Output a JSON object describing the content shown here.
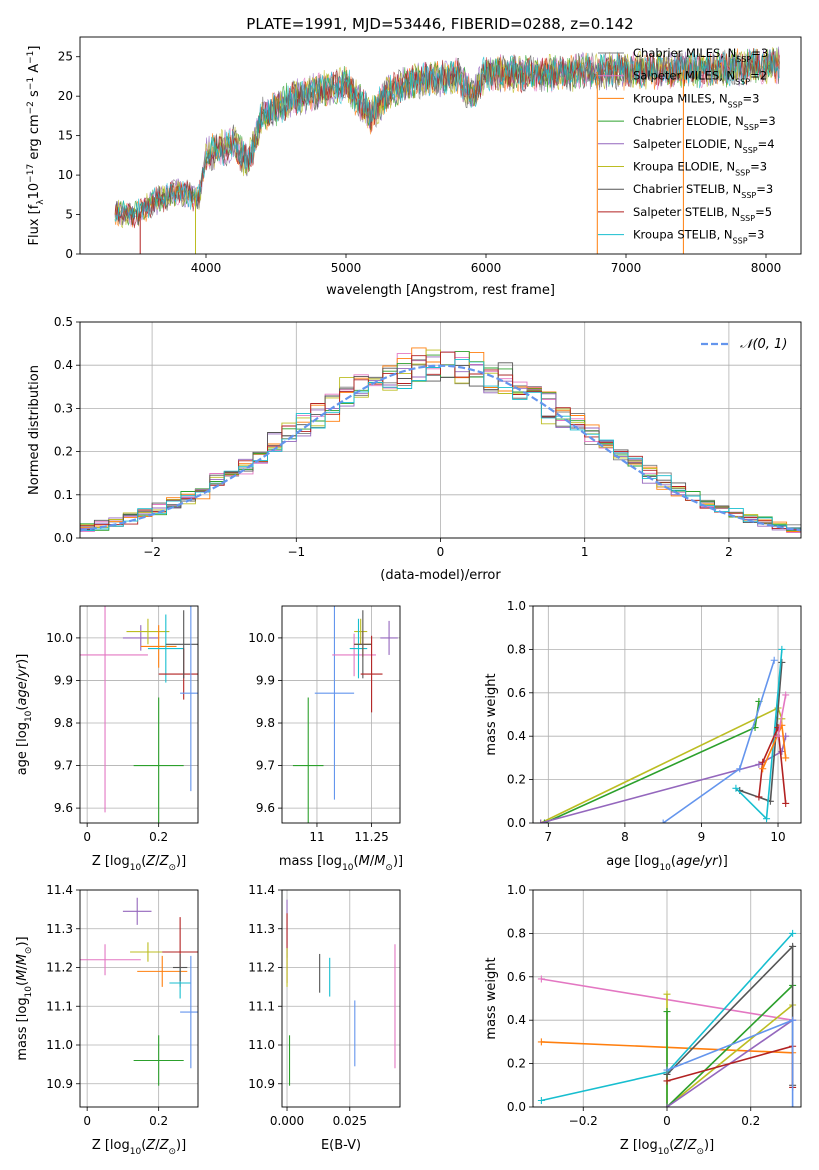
{
  "figure_title": "PLATE=1991, MJD=53446, FIBERID=0288, z=0.142",
  "colors": {
    "chabrier_miles": "#7f7f7f",
    "salpeter_miles": "#e377c2",
    "kroupa_miles": "#ff7f0e",
    "chabrier_elodie": "#2ca02c",
    "salpeter_elodie": "#9467bd",
    "kroupa_elodie": "#bcbd22",
    "chabrier_stelib": "#555555",
    "salpeter_stelib": "#b22222",
    "kroupa_stelib": "#17becf",
    "normal_curve": "#6495ed",
    "grid": "#b0b0b0"
  },
  "chart_data": [
    {
      "id": "spectrum",
      "type": "line",
      "xlabel": "wavelength [Angstrom, rest frame]",
      "ylabel": "Flux [f_λ10^-17 erg cm^-2 s^-1 A^-1]",
      "xlim": [
        3100,
        8250
      ],
      "ylim": [
        0,
        27.5
      ],
      "xticks": [
        4000,
        5000,
        6000,
        7000,
        8000
      ],
      "yticks": [
        0,
        5,
        10,
        15,
        20,
        25
      ],
      "grid": false,
      "legend_position": "top-right",
      "spectrum_anchor_points": [
        [
          3350,
          5.2
        ],
        [
          3500,
          5.0
        ],
        [
          3600,
          6.3
        ],
        [
          3800,
          8.0
        ],
        [
          3950,
          7.0
        ],
        [
          4000,
          12.5
        ],
        [
          4200,
          14.0
        ],
        [
          4300,
          11.5
        ],
        [
          4400,
          17.5
        ],
        [
          4600,
          19.5
        ],
        [
          4850,
          21.0
        ],
        [
          5000,
          21.5
        ],
        [
          5175,
          17.5
        ],
        [
          5300,
          20.5
        ],
        [
          5500,
          22.0
        ],
        [
          5800,
          22.5
        ],
        [
          5900,
          20.0
        ],
        [
          6000,
          23.0
        ],
        [
          6300,
          22.8
        ],
        [
          6600,
          23.0
        ],
        [
          7000,
          23.2
        ],
        [
          7400,
          23.3
        ],
        [
          7700,
          23.5
        ],
        [
          8000,
          24.0
        ]
      ],
      "series": [
        {
          "name": "Chabrier MILES, N_SSP=3",
          "label_main": "Chabrier MILES, N",
          "label_sub": "SSP",
          "label_end": "=3",
          "color_key": "chabrier_miles"
        },
        {
          "name": "Salpeter MILES, N_SSP=2",
          "label_main": "Salpeter MILES, N",
          "label_sub": "SSP",
          "label_end": "=2",
          "color_key": "salpeter_miles"
        },
        {
          "name": "Kroupa MILES, N_SSP=3",
          "label_main": "Kroupa MILES, N",
          "label_sub": "SSP",
          "label_end": "=3",
          "color_key": "kroupa_miles"
        },
        {
          "name": "Chabrier ELODIE, N_SSP=3",
          "label_main": "Chabrier ELODIE, N",
          "label_sub": "SSP",
          "label_end": "=3",
          "color_key": "chabrier_elodie"
        },
        {
          "name": "Salpeter ELODIE, N_SSP=4",
          "label_main": "Salpeter ELODIE, N",
          "label_sub": "SSP",
          "label_end": "=4",
          "color_key": "salpeter_elodie"
        },
        {
          "name": "Kroupa ELODIE, N_SSP=3",
          "label_main": "Kroupa ELODIE, N",
          "label_sub": "SSP",
          "label_end": "=3",
          "color_key": "kroupa_elodie"
        },
        {
          "name": "Chabrier STELIB, N_SSP=3",
          "label_main": "Chabrier STELIB, N",
          "label_sub": "SSP",
          "label_end": "=3",
          "color_key": "chabrier_stelib"
        },
        {
          "name": "Salpeter STELIB, N_SSP=5",
          "label_main": "Salpeter STELIB, N",
          "label_sub": "SSP",
          "label_end": "=5",
          "color_key": "salpeter_stelib"
        },
        {
          "name": "Kroupa STELIB, N_SSP=3",
          "label_main": "Kroupa STELIB, N",
          "label_sub": "SSP",
          "label_end": "=3",
          "color_key": "kroupa_stelib"
        }
      ],
      "dropouts": [
        {
          "x": 3530,
          "color_key": "salpeter_stelib"
        },
        {
          "x": 3925,
          "color_key": "kroupa_elodie"
        },
        {
          "x": 6795,
          "color_key": "kroupa_miles"
        },
        {
          "x": 7410,
          "color_key": "kroupa_miles"
        }
      ]
    },
    {
      "id": "residuals",
      "type": "step",
      "xlabel": "(data-model)/error",
      "ylabel": "Normed distribution",
      "xlim": [
        -2.5,
        2.5
      ],
      "ylim": [
        0,
        0.5
      ],
      "xticks": [
        -2,
        -1,
        0,
        1,
        2
      ],
      "yticks": [
        0.0,
        0.1,
        0.2,
        0.3,
        0.4,
        0.5
      ],
      "grid": true,
      "legend_position": "top-right",
      "normal_label": "𝒩(0, 1)",
      "bin_width": 0.1
    },
    {
      "id": "age_vs_z",
      "type": "errorbar",
      "xlabel": "Z [log10(Z/Z⊙)]",
      "ylabel": "age [log10(age/yr)]",
      "xlim": [
        -0.02,
        0.31
      ],
      "ylim": [
        9.565,
        10.075
      ],
      "xticks": [
        0.0,
        0.2
      ],
      "yticks": [
        9.6,
        9.7,
        9.8,
        9.9,
        10.0
      ],
      "grid": true,
      "points": [
        {
          "x": 0.05,
          "y": 9.96,
          "xerr": 0.12,
          "yerr": 0.37,
          "color_key": "salpeter_miles"
        },
        {
          "x": 0.15,
          "y": 10.0,
          "xerr": 0.05,
          "yerr": 0.03,
          "color_key": "salpeter_elodie"
        },
        {
          "x": 0.17,
          "y": 10.015,
          "xerr": 0.06,
          "yerr": 0.03,
          "color_key": "kroupa_elodie"
        },
        {
          "x": 0.2,
          "y": 9.98,
          "xerr": 0.05,
          "yerr": 0.05,
          "color_key": "kroupa_miles"
        },
        {
          "x": 0.2,
          "y": 9.7,
          "xerr": 0.07,
          "yerr": 0.16,
          "color_key": "chabrier_elodie"
        },
        {
          "x": 0.22,
          "y": 9.975,
          "xerr": 0.05,
          "yerr": 0.08,
          "color_key": "kroupa_stelib"
        },
        {
          "x": 0.27,
          "y": 9.915,
          "xerr": 0.07,
          "yerr": 0.06,
          "color_key": "salpeter_stelib"
        },
        {
          "x": 0.27,
          "y": 9.985,
          "xerr": 0.05,
          "yerr": 0.08,
          "color_key": "chabrier_stelib"
        },
        {
          "x": 0.29,
          "y": 9.87,
          "xerr": 0.03,
          "yerr": 0.23,
          "color_key": "normal_curve"
        }
      ]
    },
    {
      "id": "age_vs_mass",
      "type": "errorbar",
      "xlabel": "mass [log10(M/M⊙)]",
      "ylabel": "",
      "xlim": [
        10.84,
        11.38
      ],
      "ylim": [
        9.565,
        10.075
      ],
      "xticks": [
        11.0,
        11.25
      ],
      "yticks": [
        9.6,
        9.7,
        9.8,
        9.9,
        10.0
      ],
      "grid": true,
      "points": [
        {
          "x": 10.96,
          "y": 9.7,
          "xerr": 0.07,
          "yerr": 0.16,
          "color_key": "chabrier_elodie"
        },
        {
          "x": 11.08,
          "y": 9.87,
          "xerr": 0.09,
          "yerr": 0.25,
          "color_key": "normal_curve"
        },
        {
          "x": 11.17,
          "y": 9.96,
          "xerr": 0.1,
          "yerr": 0.05,
          "color_key": "salpeter_miles"
        },
        {
          "x": 11.2,
          "y": 10.015,
          "xerr": 0.03,
          "yerr": 0.03,
          "color_key": "kroupa_elodie"
        },
        {
          "x": 11.19,
          "y": 9.975,
          "xerr": 0.04,
          "yerr": 0.07,
          "color_key": "kroupa_stelib"
        },
        {
          "x": 11.21,
          "y": 9.985,
          "xerr": 0.04,
          "yerr": 0.03,
          "color_key": "kroupa_miles"
        },
        {
          "x": 11.21,
          "y": 9.985,
          "xerr": 0.04,
          "yerr": 0.08,
          "color_key": "chabrier_stelib"
        },
        {
          "x": 11.25,
          "y": 9.915,
          "xerr": 0.05,
          "yerr": 0.09,
          "color_key": "salpeter_stelib"
        },
        {
          "x": 11.33,
          "y": 10.0,
          "xerr": 0.04,
          "yerr": 0.04,
          "color_key": "salpeter_elodie"
        }
      ]
    },
    {
      "id": "weight_vs_age",
      "type": "line",
      "xlabel": "age [log10(age/yr)]",
      "ylabel": "mass weight",
      "xlim": [
        6.8,
        10.3
      ],
      "ylim": [
        0,
        1.0
      ],
      "xticks": [
        7,
        8,
        9,
        10
      ],
      "yticks": [
        0.0,
        0.2,
        0.4,
        0.6,
        0.8,
        1.0
      ],
      "grid": true,
      "series": [
        {
          "color_key": "kroupa_elodie",
          "points": [
            [
              6.9,
              0.0
            ],
            [
              10.0,
              0.53
            ],
            [
              10.05,
              0.48
            ]
          ]
        },
        {
          "color_key": "chabrier_elodie",
          "points": [
            [
              6.95,
              0.0
            ],
            [
              9.7,
              0.44
            ],
            [
              9.75,
              0.56
            ]
          ]
        },
        {
          "color_key": "salpeter_elodie",
          "points": [
            [
              6.9,
              0.0
            ],
            [
              9.75,
              0.27
            ],
            [
              10.05,
              0.33
            ],
            [
              10.1,
              0.4
            ]
          ]
        },
        {
          "color_key": "normal_curve",
          "points": [
            [
              8.5,
              0.0
            ],
            [
              9.5,
              0.25
            ],
            [
              9.95,
              0.75
            ]
          ]
        },
        {
          "color_key": "chabrier_stelib",
          "points": [
            [
              9.5,
              0.15
            ],
            [
              9.9,
              0.1
            ],
            [
              10.05,
              0.74
            ]
          ]
        },
        {
          "color_key": "kroupa_stelib",
          "points": [
            [
              9.45,
              0.16
            ],
            [
              9.85,
              0.02
            ],
            [
              10.05,
              0.8
            ]
          ]
        },
        {
          "color_key": "salpeter_stelib",
          "points": [
            [
              9.75,
              0.12
            ],
            [
              9.8,
              0.28
            ],
            [
              10.0,
              0.44
            ],
            [
              10.1,
              0.09
            ]
          ]
        },
        {
          "color_key": "kroupa_miles",
          "points": [
            [
              9.8,
              0.25
            ],
            [
              10.05,
              0.45
            ],
            [
              10.1,
              0.3
            ]
          ]
        },
        {
          "color_key": "salpeter_miles",
          "points": [
            [
              10.0,
              0.4
            ],
            [
              10.1,
              0.59
            ]
          ]
        }
      ]
    },
    {
      "id": "mass_vs_z",
      "type": "errorbar",
      "xlabel": "Z [log10(Z/Z⊙)]",
      "ylabel": "mass [log10(M/M⊙)]",
      "xlim": [
        -0.02,
        0.31
      ],
      "ylim": [
        10.84,
        11.4
      ],
      "xticks": [
        0.0,
        0.2
      ],
      "yticks": [
        10.9,
        11.0,
        11.1,
        11.2,
        11.3,
        11.4
      ],
      "grid": true,
      "points": [
        {
          "x": 0.05,
          "y": 11.22,
          "xerr": 0.1,
          "yerr": 0.04,
          "color_key": "salpeter_miles"
        },
        {
          "x": 0.14,
          "y": 11.345,
          "xerr": 0.04,
          "yerr": 0.035,
          "color_key": "salpeter_elodie"
        },
        {
          "x": 0.17,
          "y": 11.24,
          "xerr": 0.05,
          "yerr": 0.025,
          "color_key": "kroupa_elodie"
        },
        {
          "x": 0.2,
          "y": 10.96,
          "xerr": 0.07,
          "yerr": 0.065,
          "color_key": "chabrier_elodie"
        },
        {
          "x": 0.21,
          "y": 11.19,
          "xerr": 0.07,
          "yerr": 0.04,
          "color_key": "kroupa_miles"
        },
        {
          "x": 0.26,
          "y": 11.24,
          "xerr": 0.05,
          "yerr": 0.09,
          "color_key": "salpeter_stelib"
        },
        {
          "x": 0.26,
          "y": 11.16,
          "xerr": 0.03,
          "yerr": 0.04,
          "color_key": "kroupa_stelib"
        },
        {
          "x": 0.26,
          "y": 11.2,
          "xerr": 0.02,
          "yerr": 0.035,
          "color_key": "chabrier_stelib"
        },
        {
          "x": 0.29,
          "y": 11.085,
          "xerr": 0.03,
          "yerr": 0.145,
          "color_key": "normal_curve"
        }
      ]
    },
    {
      "id": "mass_vs_ebv",
      "type": "errorbar",
      "xlabel": "E(B-V)",
      "ylabel": "",
      "xlim": [
        -0.002,
        0.045
      ],
      "ylim": [
        10.84,
        11.4
      ],
      "xticks": [
        0.0,
        0.025
      ],
      "xtick_labels": [
        "0.000",
        "0.025"
      ],
      "yticks": [
        10.9,
        11.0,
        11.1,
        11.2,
        11.3,
        11.4
      ],
      "grid": true,
      "points": [
        {
          "x": 0.0,
          "y": 11.3,
          "xerr": 0,
          "yerr": 0.075,
          "color_key": "salpeter_elodie"
        },
        {
          "x": 0.0,
          "y": 11.25,
          "xerr": 0,
          "yerr": 0.09,
          "color_key": "salpeter_stelib"
        },
        {
          "x": 0.0,
          "y": 11.2,
          "xerr": 0,
          "yerr": 0.05,
          "color_key": "kroupa_elodie"
        },
        {
          "x": 0.001,
          "y": 10.96,
          "xerr": 0,
          "yerr": 0.065,
          "color_key": "chabrier_elodie"
        },
        {
          "x": 0.013,
          "y": 11.185,
          "xerr": 0,
          "yerr": 0.05,
          "color_key": "chabrier_stelib"
        },
        {
          "x": 0.017,
          "y": 11.175,
          "xerr": 0,
          "yerr": 0.05,
          "color_key": "kroupa_stelib"
        },
        {
          "x": 0.027,
          "y": 11.03,
          "xerr": 0,
          "yerr": 0.085,
          "color_key": "normal_curve"
        },
        {
          "x": 0.043,
          "y": 11.1,
          "xerr": 0,
          "yerr": 0.16,
          "color_key": "salpeter_miles"
        }
      ]
    },
    {
      "id": "weight_vs_z",
      "type": "line",
      "xlabel": "Z [log10(Z/Z⊙)]",
      "ylabel": "mass weight",
      "xlim": [
        -0.32,
        0.32
      ],
      "ylim": [
        0,
        1.0
      ],
      "xticks": [
        -0.2,
        0.0,
        0.2
      ],
      "yticks": [
        0.0,
        0.2,
        0.4,
        0.6,
        0.8,
        1.0
      ],
      "grid": true,
      "series": [
        {
          "color_key": "salpeter_miles",
          "points": [
            [
              -0.3,
              0.59
            ],
            [
              0.3,
              0.4
            ]
          ]
        },
        {
          "color_key": "kroupa_miles",
          "points": [
            [
              -0.3,
              0.3
            ],
            [
              0.3,
              0.25
            ]
          ]
        },
        {
          "color_key": "kroupa_stelib",
          "points": [
            [
              -0.3,
              0.03
            ],
            [
              0.0,
              0.16
            ],
            [
              0.3,
              0.8
            ]
          ]
        },
        {
          "color_key": "kroupa_elodie",
          "points": [
            [
              0.0,
              0.52
            ],
            [
              0.0,
              0.0
            ],
            [
              0.3,
              0.47
            ]
          ]
        },
        {
          "color_key": "chabrier_elodie",
          "points": [
            [
              0.0,
              0.44
            ],
            [
              0.0,
              0.0
            ],
            [
              0.3,
              0.56
            ]
          ]
        },
        {
          "color_key": "chabrier_stelib",
          "points": [
            [
              0.0,
              0.15
            ],
            [
              0.3,
              0.74
            ],
            [
              0.3,
              0.1
            ]
          ]
        },
        {
          "color_key": "salpeter_elodie",
          "points": [
            [
              0.0,
              0.0
            ],
            [
              0.3,
              0.4
            ]
          ]
        },
        {
          "color_key": "salpeter_stelib",
          "points": [
            [
              0.0,
              0.12
            ],
            [
              0.3,
              0.28
            ],
            [
              0.3,
              0.09
            ]
          ]
        },
        {
          "color_key": "normal_curve",
          "points": [
            [
              0.0,
              0.17
            ],
            [
              0.3,
              0.4
            ],
            [
              0.3,
              0.0
            ]
          ]
        }
      ]
    }
  ]
}
